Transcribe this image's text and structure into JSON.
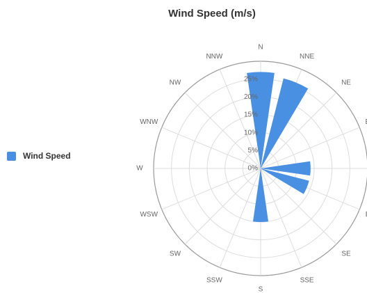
{
  "chart_data": {
    "type": "polar-bar",
    "title": "Wind Speed (m/s)",
    "directions": [
      "N",
      "NNE",
      "NE",
      "ENE",
      "E",
      "ESE",
      "SE",
      "SSE",
      "S",
      "SSW",
      "SW",
      "WSW",
      "W",
      "WNW",
      "NW",
      "NNW"
    ],
    "series": [
      {
        "name": "Wind Speed",
        "values": [
          27,
          26,
          0,
          0,
          14,
          14,
          0,
          0,
          15,
          0,
          0,
          0,
          0,
          0,
          0,
          0
        ]
      }
    ],
    "radial_ticks": [
      "0%",
      "5%",
      "10%",
      "15%",
      "20%",
      "25%"
    ],
    "rmax": 30,
    "legend_position": "left",
    "colors": {
      "bar": "#4a90e2",
      "grid": "#dddddd",
      "outer": "#999999"
    }
  }
}
